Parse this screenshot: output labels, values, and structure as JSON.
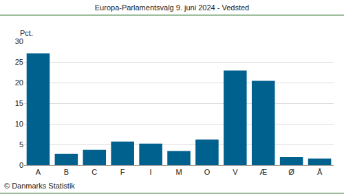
{
  "chart_data": {
    "type": "bar",
    "title": "Europa-Parlamentsvalg 9. juni 2024 - Vedsted",
    "ylabel": "Pct.",
    "source": "© Danmarks Statistik",
    "categories": [
      "A",
      "B",
      "C",
      "F",
      "I",
      "M",
      "O",
      "V",
      "Æ",
      "Ø",
      "Å"
    ],
    "values": [
      27.1,
      2.7,
      3.7,
      5.7,
      5.2,
      3.4,
      6.2,
      22.9,
      20.4,
      2.0,
      1.6
    ],
    "color": "#00618f",
    "ylim": [
      0,
      30
    ],
    "yticks": [
      0,
      5,
      10,
      15,
      20,
      25,
      30
    ],
    "grid": true
  }
}
